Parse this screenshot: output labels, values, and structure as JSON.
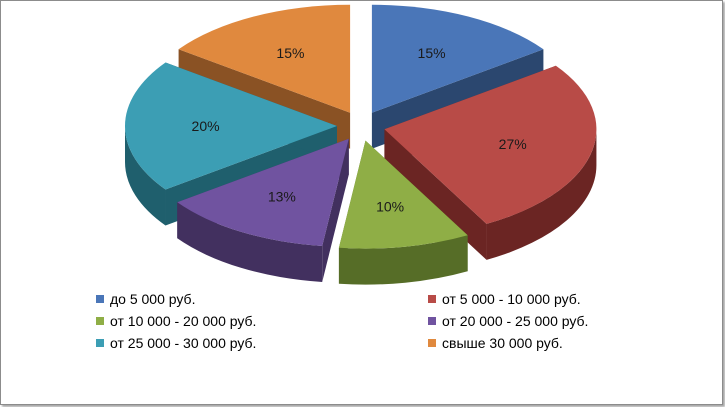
{
  "chart_data": {
    "type": "pie",
    "style": "3d-exploded",
    "title": "",
    "categories": [
      "до 5 000 руб.",
      "от 5 000 - 10 000 руб.",
      "от 10 000 - 20 000 руб.",
      "от 20 000 - 25 000 руб.",
      "от 25 000 - 30 000 руб.",
      "свыше 30 000 руб."
    ],
    "values": [
      15,
      27,
      10,
      13,
      20,
      15
    ],
    "labels": [
      "15%",
      "27%",
      "10%",
      "13%",
      "20%",
      "15%"
    ],
    "colors": [
      "#4a76b8",
      "#b84b47",
      "#8fae46",
      "#7053a0",
      "#3c9eb4",
      "#e0893e"
    ],
    "dark_colors": [
      "#2b476f",
      "#6b2523",
      "#566d27",
      "#42305f",
      "#1f5f6d",
      "#8a5224"
    ],
    "legend_position": "bottom",
    "legend_columns": 2
  }
}
